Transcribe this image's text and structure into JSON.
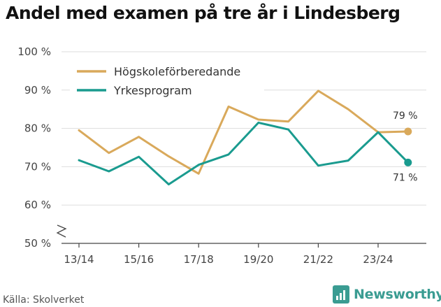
{
  "title": "Andel med examen på tre år i Lindesberg",
  "source": "Källa: Skolverket",
  "brand": {
    "name": "Newsworthy",
    "icon": "bar-chart-logo-icon",
    "color": "#3a9c92"
  },
  "chart_data": {
    "type": "line",
    "title": "Andel med examen på tre år i Lindesberg",
    "xlabel": "",
    "ylabel": "",
    "categories": [
      "13/14",
      "14/15",
      "15/16",
      "16/17",
      "17/18",
      "18/19",
      "19/20",
      "20/21",
      "21/22",
      "22/23",
      "23/24",
      "24/25"
    ],
    "x_tick_labels": [
      "13/14",
      "15/16",
      "17/18",
      "19/20",
      "21/22",
      "23/24"
    ],
    "y_tick_labels": [
      "50 %",
      "60 %",
      "70 %",
      "80 %",
      "90 %",
      "100 %"
    ],
    "ylim": [
      50,
      100
    ],
    "y_axis_break": true,
    "grid": true,
    "legend_position": "top-left",
    "series": [
      {
        "name": "Högskoleförberedande",
        "color": "#d9a95b",
        "values": [
          79.5,
          73.6,
          77.8,
          72.7,
          68.2,
          85.7,
          82.3,
          81.8,
          89.8,
          85.0,
          79.0,
          79.2
        ],
        "end_label": "79 %"
      },
      {
        "name": "Yrkesprogram",
        "color": "#1a9b8f",
        "values": [
          71.7,
          68.8,
          72.6,
          65.4,
          70.5,
          73.2,
          81.5,
          79.7,
          70.3,
          71.6,
          79.0,
          71.1
        ],
        "end_label": "71 %"
      }
    ]
  }
}
